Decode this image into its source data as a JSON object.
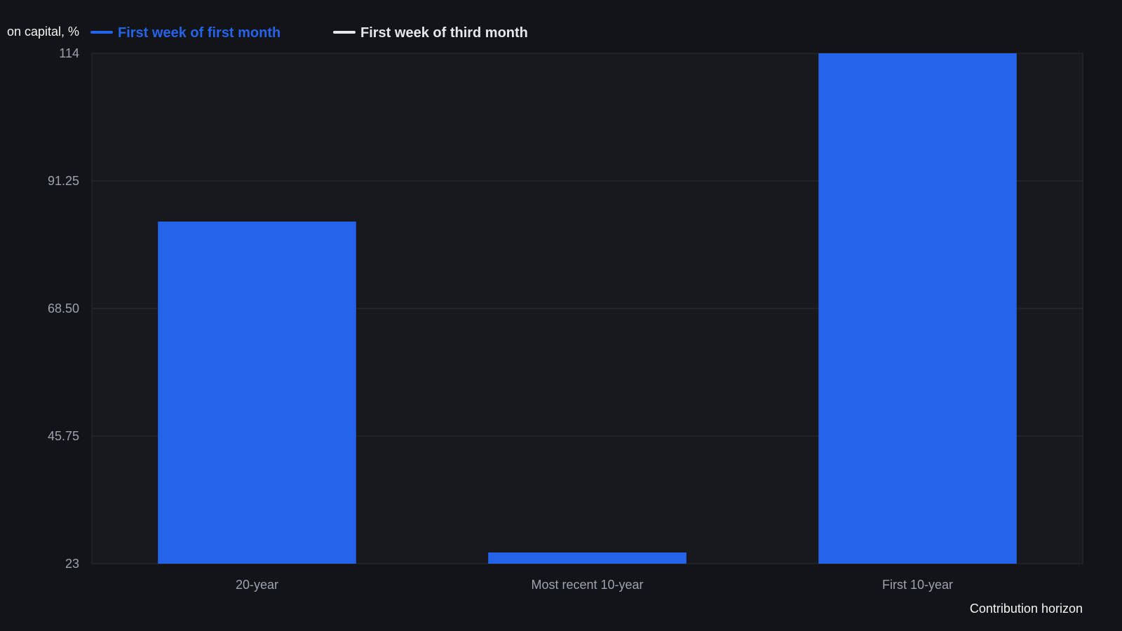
{
  "chart_data": {
    "type": "bar",
    "ylabel": "on capital, %",
    "xlabel": "Contribution horizon",
    "categories": [
      "20-year",
      "Most recent 10-year",
      "First 10-year"
    ],
    "ylim": [
      23,
      114
    ],
    "yticks": [
      "23",
      "45.75",
      "68.50",
      "91.25",
      "114"
    ],
    "grid": true,
    "legend_position": "top-left",
    "series": [
      {
        "name": "First week of first month",
        "color": "#2563eb",
        "values": [
          84,
          25,
          114
        ]
      },
      {
        "name": "First week of third month",
        "color": "#e5e7eb",
        "values": [
          null,
          null,
          null
        ]
      }
    ],
    "colors": {
      "background": "#121418",
      "plot_background": "#17191e",
      "grid": "#2a2d33",
      "tick_text": "#9ca3af",
      "label_text": "#f3f4f6"
    }
  }
}
